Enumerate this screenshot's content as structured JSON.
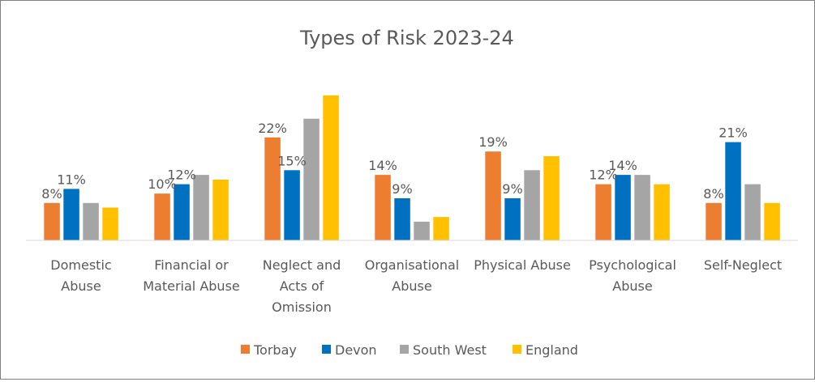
{
  "chart_data": {
    "type": "bar",
    "title": "Types of Risk 2023-24",
    "xlabel": "",
    "ylabel": "",
    "ylim": [
      0,
      0.3
    ],
    "grid": false,
    "legend_position": "bottom",
    "categories": [
      [
        "Domestic",
        "Abuse"
      ],
      [
        "Financial or",
        "Material Abuse"
      ],
      [
        "Neglect and",
        "Acts of",
        "Omission"
      ],
      [
        "Organisational",
        "Abuse"
      ],
      [
        "Physical Abuse"
      ],
      [
        "Psychological",
        "Abuse"
      ],
      [
        "Self-Neglect"
      ]
    ],
    "series": [
      {
        "name": "Torbay",
        "color": "#ED7D31",
        "values": [
          0.08,
          0.1,
          0.22,
          0.14,
          0.19,
          0.12,
          0.08
        ],
        "labels": [
          "8%",
          "10%",
          "22%",
          "14%",
          "19%",
          "12%",
          "8%"
        ]
      },
      {
        "name": "Devon",
        "color": "#0070C0",
        "values": [
          0.11,
          0.12,
          0.15,
          0.09,
          0.09,
          0.14,
          0.21
        ],
        "labels": [
          "11%",
          "12%",
          "15%",
          "9%",
          "9%",
          "14%",
          "21%"
        ]
      },
      {
        "name": "South West",
        "color": "#A5A5A5",
        "values": [
          0.08,
          0.14,
          0.26,
          0.04,
          0.15,
          0.14,
          0.12
        ],
        "labels": []
      },
      {
        "name": "England",
        "color": "#FFC000",
        "values": [
          0.07,
          0.13,
          0.31,
          0.05,
          0.18,
          0.12,
          0.08
        ],
        "labels": []
      }
    ]
  }
}
